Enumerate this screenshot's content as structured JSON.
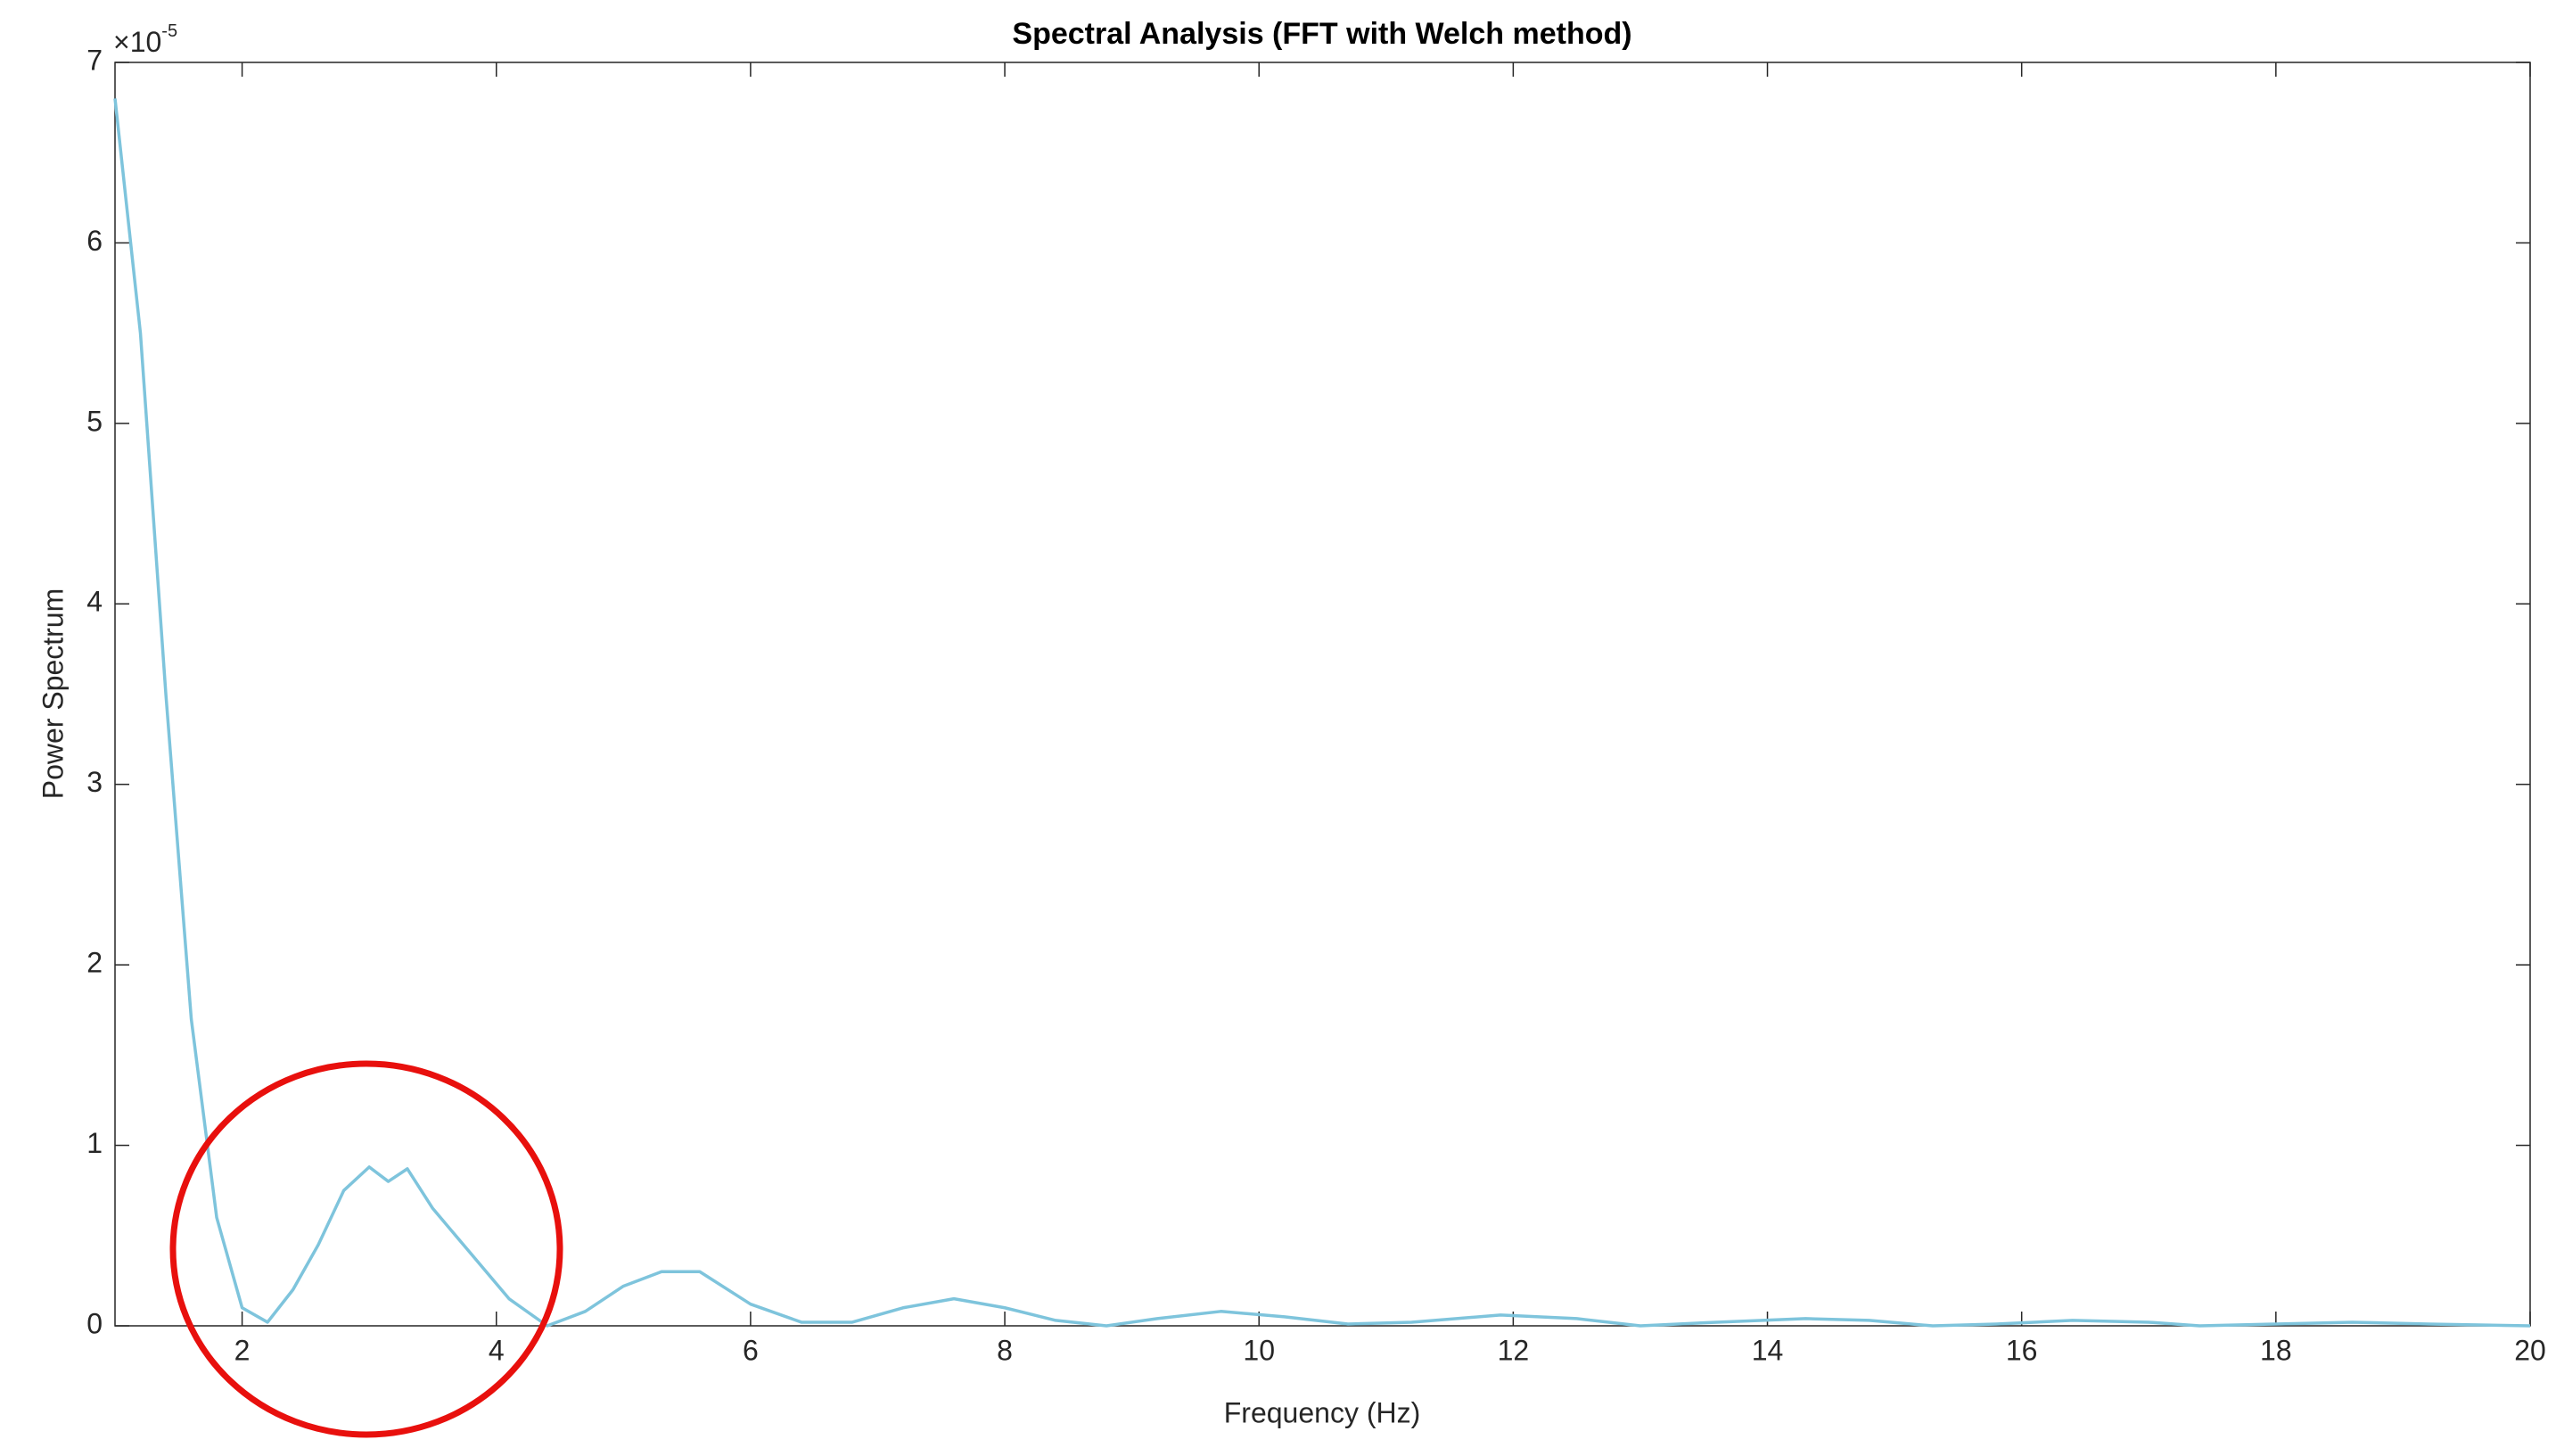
{
  "chart_data": {
    "type": "line",
    "title": "Spectral Analysis (FFT with Welch method)",
    "x_label": "Frequency (Hz)",
    "y_label": "Power Spectrum",
    "y_multiplier": {
      "base": "×10",
      "exponent": "-5"
    },
    "xlim": [
      1,
      20
    ],
    "xticks": [
      2,
      4,
      6,
      8,
      10,
      12,
      14,
      16,
      18,
      20
    ],
    "ylim": [
      0,
      7
    ],
    "yticks": [
      0,
      1,
      2,
      3,
      4,
      5,
      6,
      7
    ],
    "x": [
      1,
      1.2,
      1.4,
      1.6,
      1.8,
      2.0,
      2.2,
      2.4,
      2.6,
      2.8,
      3.0,
      3.15,
      3.3,
      3.5,
      3.8,
      4.1,
      4.4,
      4.7,
      5.0,
      5.3,
      5.6,
      6.0,
      6.4,
      6.8,
      7.2,
      7.6,
      8.0,
      8.4,
      8.8,
      9.2,
      9.7,
      10.2,
      10.7,
      11.2,
      11.9,
      12.5,
      13.0,
      13.6,
      14.3,
      14.8,
      15.3,
      15.8,
      16.4,
      17.0,
      17.4,
      18.0,
      18.6,
      19.2,
      20
    ],
    "series": [
      {
        "color": "#7ec4dc",
        "values": [
          6.8,
          5.5,
          3.5,
          1.7,
          0.6,
          0.1,
          0.02,
          0.2,
          0.45,
          0.75,
          0.88,
          0.8,
          0.87,
          0.65,
          0.4,
          0.15,
          0,
          0.08,
          0.22,
          0.3,
          0.3,
          0.12,
          0.02,
          0.02,
          0.1,
          0.15,
          0.1,
          0.03,
          0,
          0.04,
          0.08,
          0.05,
          0.01,
          0.02,
          0.06,
          0.04,
          0,
          0.02,
          0.04,
          0.03,
          0,
          0.01,
          0.03,
          0.02,
          0,
          0.01,
          0.02,
          0.01,
          0
        ]
      }
    ]
  }
}
